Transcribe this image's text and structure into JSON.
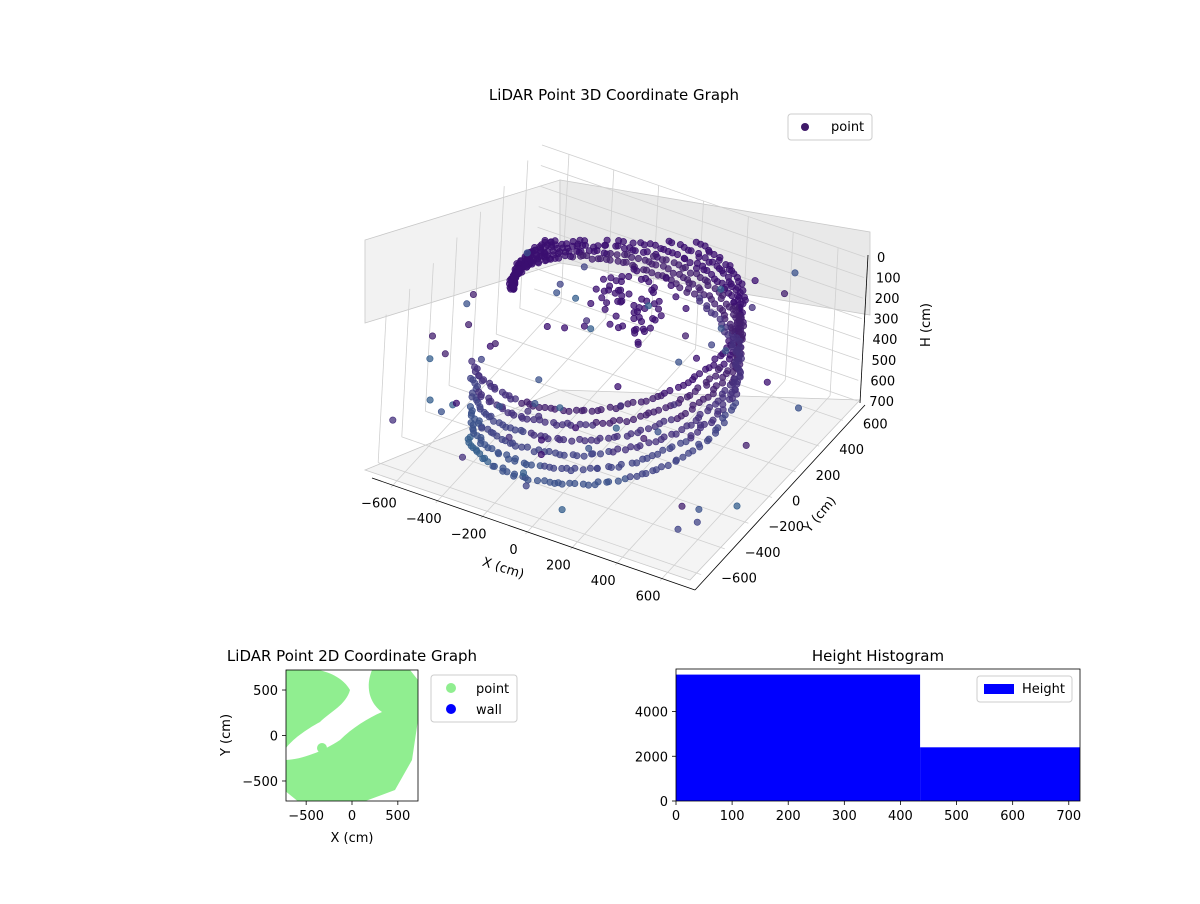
{
  "figure": {
    "background": "#ffffff"
  },
  "chart_data": [
    {
      "id": "lidar-3d",
      "type": "scatter",
      "title": "LiDAR Point 3D Coordinate Graph",
      "xlabel": "X (cm)",
      "ylabel": "Y (cm)",
      "zlabel": "H (cm)",
      "xlim": [
        -720,
        720
      ],
      "ylim": [
        -720,
        720
      ],
      "zlim": [
        720,
        0
      ],
      "x_ticks": [
        -600,
        -400,
        -200,
        0,
        200,
        400,
        600
      ],
      "y_ticks": [
        -600,
        -400,
        -200,
        0,
        200,
        400,
        600
      ],
      "z_ticks": [
        0,
        100,
        200,
        300,
        400,
        500,
        600,
        700
      ],
      "grid": true,
      "colormap": "viridis",
      "legend": {
        "position": "top-right",
        "entries": [
          "point"
        ]
      },
      "series": [
        {
          "name": "point",
          "color": "#3f1a69",
          "shape": "spiral-ramp wall from approx (-650,-650) up around to (600,400) at heights 0-700"
        }
      ]
    },
    {
      "id": "lidar-2d",
      "type": "scatter",
      "title": "LiDAR Point 2D Coordinate Graph",
      "xlabel": "X (cm)",
      "ylabel": "Y (cm)",
      "xlim": [
        -720,
        720
      ],
      "ylim": [
        -720,
        720
      ],
      "x_ticks": [
        -500,
        0,
        500
      ],
      "y_ticks": [
        -500,
        0,
        500
      ],
      "legend": {
        "position": "outside-right",
        "entries": [
          "point",
          "wall"
        ]
      },
      "series": [
        {
          "name": "point",
          "color": "#90ee90"
        },
        {
          "name": "wall",
          "color": "#0000ff"
        }
      ]
    },
    {
      "id": "height-hist",
      "type": "bar",
      "title": "Height Histogram",
      "xlim": [
        0,
        720
      ],
      "ylim": [
        0,
        5900
      ],
      "x_ticks": [
        0,
        100,
        200,
        300,
        400,
        500,
        600,
        700
      ],
      "y_ticks": [
        0,
        2000,
        4000
      ],
      "legend": {
        "position": "top-right",
        "entries": [
          "Height"
        ]
      },
      "bins": [
        {
          "start": 0,
          "end": 435,
          "value": 5650
        },
        {
          "start": 435,
          "end": 720,
          "value": 2400
        }
      ],
      "series": [
        {
          "name": "Height",
          "color": "#0000ff"
        }
      ]
    }
  ]
}
